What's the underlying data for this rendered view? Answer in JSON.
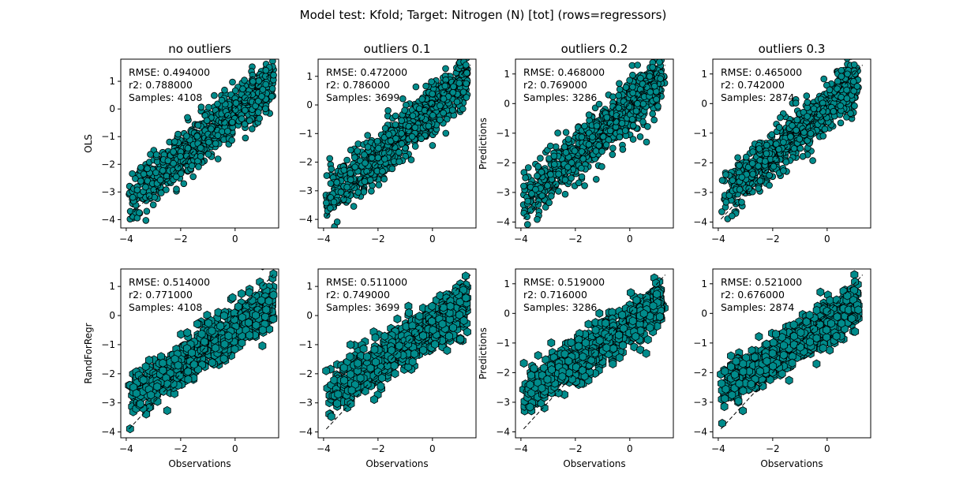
{
  "figure_title": "Model test: Kfold; Target: Nitrogen (N) [tot] (rows=regressors)",
  "colors": {
    "marker_fill": "#008b8b",
    "marker_edge": "#000000",
    "identity_line": "#000000"
  },
  "chart_data": [
    {
      "type": "scatter",
      "title": "no outliers",
      "ylabel": "OLS",
      "xlabel": "",
      "row_label": "OLS",
      "marker": "circle",
      "xlim": [
        -4.2,
        1.6
      ],
      "ylim": [
        -4.3,
        1.8
      ],
      "xticks": [
        -4,
        -2,
        0
      ],
      "yticks": [
        -4,
        -3,
        -2,
        -1,
        0,
        1
      ],
      "rmse": "RMSE: 0.494000",
      "r2": "r2: 0.788000",
      "samples": "Samples: 4108",
      "stats": {
        "rmse": 0.494,
        "r2": 0.788,
        "samples": 4108
      },
      "point_cloud": {
        "x_range": [
          -3.9,
          1.4
        ],
        "slope": 0.81,
        "intercept": -0.13,
        "noise_sd": 0.45
      }
    },
    {
      "type": "scatter",
      "title": "outliers 0.1",
      "ylabel": "",
      "xlabel": "",
      "row_label": "OLS",
      "marker": "circle",
      "xlim": [
        -4.2,
        1.6
      ],
      "ylim": [
        -4.3,
        1.6
      ],
      "xticks": [
        -4,
        -2,
        0
      ],
      "yticks": [
        -4,
        -3,
        -2,
        -1,
        0,
        1
      ],
      "rmse": "RMSE: 0.472000",
      "r2": "r2: 0.786000",
      "samples": "Samples: 3699",
      "stats": {
        "rmse": 0.472,
        "r2": 0.786,
        "samples": 3699
      },
      "point_cloud": {
        "x_range": [
          -3.9,
          1.3
        ],
        "slope": 0.81,
        "intercept": -0.13,
        "noise_sd": 0.43
      }
    },
    {
      "type": "scatter",
      "title": "outliers 0.2",
      "ylabel": "Predictions",
      "xlabel": "",
      "row_label": "OLS",
      "marker": "circle",
      "xlim": [
        -4.2,
        1.6
      ],
      "ylim": [
        -4.2,
        1.5
      ],
      "xticks": [
        -4,
        -2,
        0
      ],
      "yticks": [
        -4,
        -3,
        -2,
        -1,
        0,
        1
      ],
      "rmse": "RMSE: 0.468000",
      "r2": "r2: 0.769000",
      "samples": "Samples: 3286",
      "stats": {
        "rmse": 0.468,
        "r2": 0.769,
        "samples": 3286
      },
      "point_cloud": {
        "x_range": [
          -3.9,
          1.2
        ],
        "slope": 0.8,
        "intercept": -0.13,
        "noise_sd": 0.42
      }
    },
    {
      "type": "scatter",
      "title": "outliers 0.3",
      "ylabel": "",
      "xlabel": "",
      "row_label": "OLS",
      "marker": "circle",
      "xlim": [
        -4.2,
        1.6
      ],
      "ylim": [
        -4.2,
        1.5
      ],
      "xticks": [
        -4,
        -2,
        0
      ],
      "yticks": [
        -4,
        -3,
        -2,
        -1,
        0,
        1
      ],
      "rmse": "RMSE: 0.465000",
      "r2": "r2: 0.742000",
      "samples": "Samples: 2874",
      "stats": {
        "rmse": 0.465,
        "r2": 0.742,
        "samples": 2874
      },
      "point_cloud": {
        "x_range": [
          -3.9,
          1.1
        ],
        "slope": 0.78,
        "intercept": -0.14,
        "noise_sd": 0.4
      }
    },
    {
      "type": "scatter",
      "title": "",
      "ylabel": "RandForRegr",
      "xlabel": "Observations",
      "row_label": "RandForRegr",
      "marker": "hexagon",
      "xlim": [
        -4.2,
        1.6
      ],
      "ylim": [
        -4.2,
        1.6
      ],
      "xticks": [
        -4,
        -2,
        0
      ],
      "yticks": [
        -4,
        -3,
        -2,
        -1,
        0,
        1
      ],
      "rmse": "RMSE: 0.514000",
      "r2": "r2: 0.771000",
      "samples": "Samples: 4108",
      "stats": {
        "rmse": 0.514,
        "r2": 0.771,
        "samples": 4108
      },
      "point_cloud": {
        "x_range": [
          -3.9,
          1.4
        ],
        "slope": 0.62,
        "intercept": -0.4,
        "noise_sd": 0.38
      }
    },
    {
      "type": "scatter",
      "title": "",
      "ylabel": "",
      "xlabel": "Observations",
      "row_label": "RandForRegr",
      "marker": "hexagon",
      "xlim": [
        -4.2,
        1.6
      ],
      "ylim": [
        -4.2,
        1.6
      ],
      "xticks": [
        -4,
        -2,
        0
      ],
      "yticks": [
        -4,
        -3,
        -2,
        -1,
        0,
        1
      ],
      "rmse": "RMSE: 0.511000",
      "r2": "r2: 0.749000",
      "samples": "Samples: 3699",
      "stats": {
        "rmse": 0.511,
        "r2": 0.749,
        "samples": 3699
      },
      "point_cloud": {
        "x_range": [
          -3.9,
          1.3
        ],
        "slope": 0.62,
        "intercept": -0.38,
        "noise_sd": 0.38
      }
    },
    {
      "type": "scatter",
      "title": "",
      "ylabel": "Predictions",
      "xlabel": "Observations",
      "row_label": "RandForRegr",
      "marker": "hexagon",
      "xlim": [
        -4.2,
        1.6
      ],
      "ylim": [
        -4.2,
        1.5
      ],
      "xticks": [
        -4,
        -2,
        0
      ],
      "yticks": [
        -4,
        -3,
        -2,
        -1,
        0,
        1
      ],
      "rmse": "RMSE: 0.519000",
      "r2": "r2: 0.716000",
      "samples": "Samples: 3286",
      "stats": {
        "rmse": 0.519,
        "r2": 0.716,
        "samples": 3286
      },
      "point_cloud": {
        "x_range": [
          -3.9,
          1.2
        ],
        "slope": 0.6,
        "intercept": -0.38,
        "noise_sd": 0.38
      }
    },
    {
      "type": "scatter",
      "title": "",
      "ylabel": "",
      "xlabel": "Observations",
      "row_label": "RandForRegr",
      "marker": "hexagon",
      "xlim": [
        -4.2,
        1.6
      ],
      "ylim": [
        -4.2,
        1.5
      ],
      "xticks": [
        -4,
        -2,
        0
      ],
      "yticks": [
        -4,
        -3,
        -2,
        -1,
        0,
        1
      ],
      "rmse": "RMSE: 0.521000",
      "r2": "r2: 0.676000",
      "samples": "Samples: 2874",
      "stats": {
        "rmse": 0.521,
        "r2": 0.676,
        "samples": 2874
      },
      "point_cloud": {
        "x_range": [
          -3.9,
          1.1
        ],
        "slope": 0.58,
        "intercept": -0.36,
        "noise_sd": 0.36
      }
    }
  ]
}
